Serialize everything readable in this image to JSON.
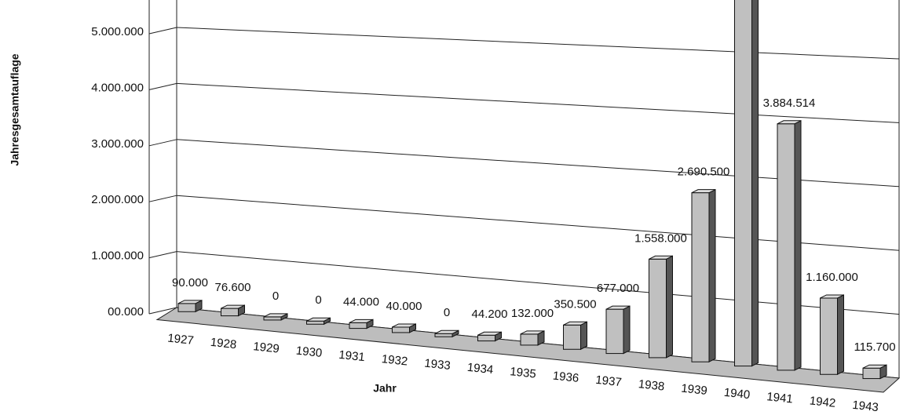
{
  "chart_data": {
    "type": "bar3d",
    "y_label": "Jahresgesamtauflage",
    "x_label": "Jahr",
    "categories": [
      "1927",
      "1928",
      "1929",
      "1930",
      "1931",
      "1932",
      "1933",
      "1934",
      "1935",
      "1936",
      "1937",
      "1938",
      "1939",
      "1940",
      "1941",
      "1942",
      "1943"
    ],
    "values": [
      90000,
      76600,
      0,
      0,
      44000,
      40000,
      0,
      44200,
      132000,
      350500,
      677000,
      1558000,
      2690500,
      6000000,
      3884514,
      1160000,
      115700
    ],
    "value_labels": [
      "90.000",
      "76.600",
      "0",
      "0",
      "44.000",
      "40.000",
      "0",
      "44.200",
      "132.000",
      "350.500",
      "677.000",
      "1.558.000",
      "2.690.500",
      null,
      "3.884.514",
      "1.160.000",
      "115.700"
    ],
    "color": "#c0c0c0",
    "ylim": [
      0,
      5000000
    ],
    "yticks": [
      {
        "value": 0,
        "label": "00.000"
      },
      {
        "value": 1000000,
        "label": "1.000.000"
      },
      {
        "value": 2000000,
        "label": "2.000.000"
      },
      {
        "value": 3000000,
        "label": "3.000.000"
      },
      {
        "value": 4000000,
        "label": "4.000.000"
      },
      {
        "value": 5000000,
        "label": "5.000.000"
      }
    ],
    "grid": true
  }
}
